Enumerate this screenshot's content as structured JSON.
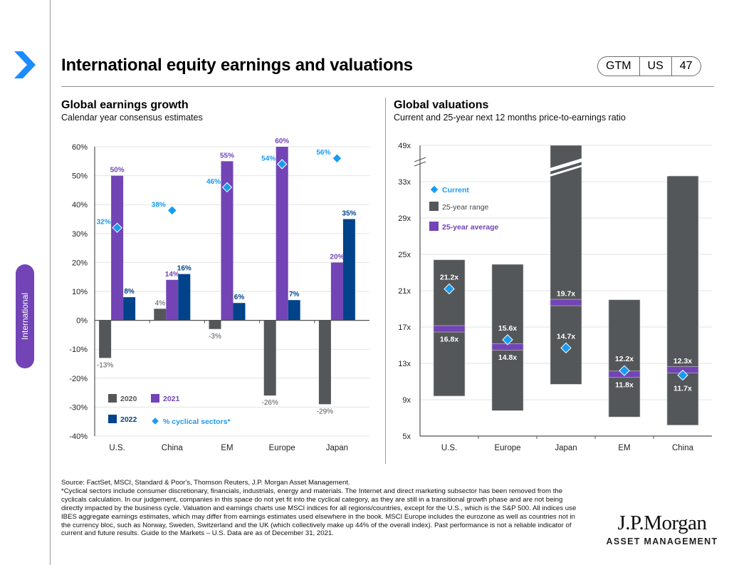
{
  "header": {
    "title": "International equity earnings and valuations",
    "badge": [
      "GTM",
      "US",
      "47"
    ],
    "side_tab": "International",
    "nav_icon": "chevron-right-icon"
  },
  "colors": {
    "accent_blue": "#1a8cff",
    "y2020": "#54575a",
    "y2021": "#7244b6",
    "y2022": "#00438a",
    "cyclical": "#1a9bf0",
    "range": "#54575a",
    "average": "#7244b6",
    "current": "#1a9bf0"
  },
  "left": {
    "title": "Global earnings growth",
    "subtitle": "Calendar year consensus estimates"
  },
  "right": {
    "title": "Global valuations",
    "subtitle": "Current and 25-year next 12 months price-to-earnings ratio"
  },
  "chart_data": [
    {
      "type": "bar",
      "title": "Global earnings growth",
      "subtitle": "Calendar year consensus estimates",
      "categories": [
        "U.S.",
        "China",
        "EM",
        "Europe",
        "Japan"
      ],
      "series": [
        {
          "name": "2020",
          "values": [
            -13,
            4,
            -3,
            -26,
            -29
          ],
          "labels": [
            "-13%",
            "4%",
            "-3%",
            "-26%",
            "-29%"
          ]
        },
        {
          "name": "2021",
          "values": [
            50,
            14,
            55,
            60,
            20
          ],
          "labels": [
            "50%",
            "14%",
            "55%",
            "60%",
            "20%"
          ]
        },
        {
          "name": "2022",
          "values": [
            8,
            16,
            6,
            7,
            35
          ],
          "labels": [
            "8%",
            "16%",
            "6%",
            "7%",
            "35%"
          ]
        },
        {
          "name": "% cyclical sectors*",
          "type": "scatter",
          "values": [
            32,
            38,
            46,
            54,
            56
          ],
          "labels": [
            "32%",
            "38%",
            "46%",
            "54%",
            "56%"
          ]
        }
      ],
      "ylim": [
        -40,
        60
      ],
      "yticks": [
        "60%",
        "50%",
        "40%",
        "30%",
        "20%",
        "10%",
        "0%",
        "-10%",
        "-20%",
        "-30%",
        "-40%"
      ],
      "ytick_values": [
        60,
        50,
        40,
        30,
        20,
        10,
        0,
        -10,
        -20,
        -30,
        -40
      ],
      "grid": true,
      "legend": {
        "placement": "bottom-left",
        "entries": [
          "2020",
          "2021",
          "2022",
          "% cyclical sectors*"
        ]
      }
    },
    {
      "type": "bar",
      "title": "Global valuations",
      "subtitle": "Current and 25-year next 12 months price-to-earnings ratio",
      "categories": [
        "U.S.",
        "Europe",
        "Japan",
        "EM",
        "China"
      ],
      "series": [
        {
          "name": "25-year range",
          "low": [
            9.4,
            7.8,
            10.7,
            7.1,
            6.2
          ],
          "high": [
            24.4,
            23.9,
            49,
            20.0,
            35.5
          ]
        },
        {
          "name": "25-year average",
          "values": [
            16.8,
            14.8,
            19.7,
            11.8,
            12.3
          ],
          "labels": [
            "16.8x",
            "14.8x",
            "19.7x",
            "11.8x",
            "12.3x"
          ]
        },
        {
          "name": "Current",
          "values": [
            21.2,
            15.6,
            14.7,
            12.2,
            11.7
          ],
          "labels": [
            "21.2x",
            "15.6x",
            "14.7x",
            "12.2x",
            "11.7x"
          ]
        }
      ],
      "ylim": [
        5,
        49
      ],
      "axis_break": [
        33,
        49
      ],
      "yticks": [
        "49x",
        "33x",
        "29x",
        "25x",
        "21x",
        "17x",
        "13x",
        "9x",
        "5x"
      ],
      "ytick_values": [
        49,
        33,
        29,
        25,
        21,
        17,
        13,
        9,
        5
      ],
      "grid": true,
      "legend": {
        "placement": "top-left",
        "entries": [
          "Current",
          "25-year range",
          "25-year average"
        ]
      }
    }
  ],
  "footnote": {
    "source": "Source: FactSet, MSCI, Standard & Poor's, Thomson Reuters, J.P. Morgan Asset Management.",
    "note": "*Cyclical sectors include consumer discretionary, financials, industrials, energy and materials. The Internet and direct marketing subsector has been removed from the cyclicals calculation. In our judgement, companies in this space do not yet fit into the cyclical category, as they are still in a transitional growth phase and are not being directly impacted by the business cycle. Valuation and earnings charts use MSCI indices for all regions/countries, except for the U.S., which is the S&P 500. All indices use IBES aggregate earnings estimates, which may differ from earnings estimates used elsewhere in the book. MSCI Europe includes the eurozone as well as countries not in the currency bloc, such as Norway, Sweden, Switzerland and the UK (which collectively make up 44% of the overall index). Past performance is not a reliable indicator of current and future results. Guide to the Markets – U.S. Data are as of December 31, 2021."
  },
  "logo": {
    "name": "J.P.Morgan",
    "tagline": "ASSET MANAGEMENT"
  }
}
